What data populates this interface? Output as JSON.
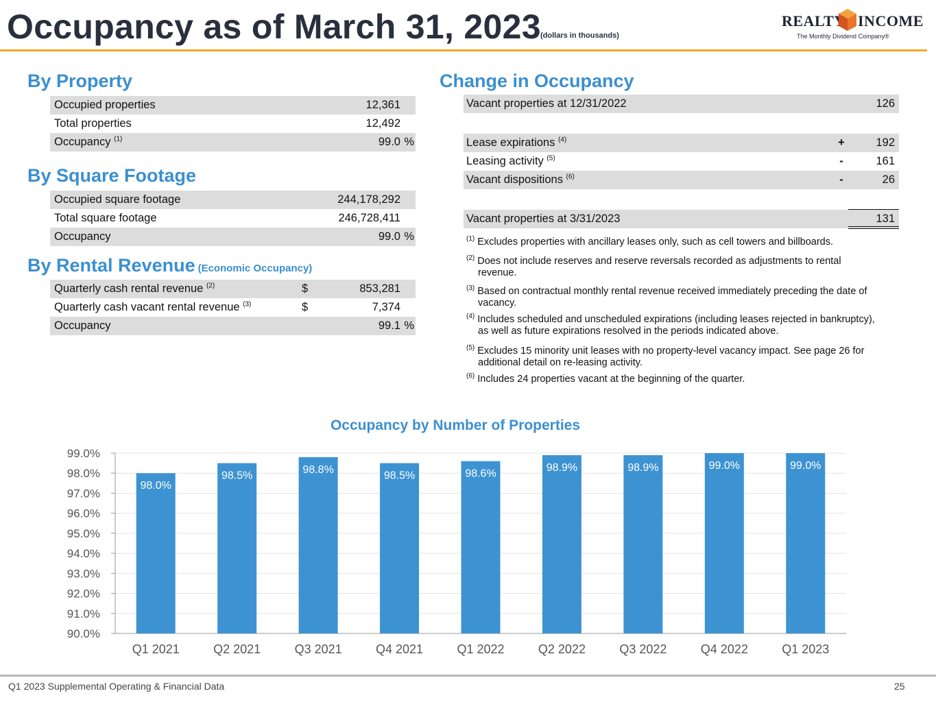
{
  "header": {
    "title": "Occupancy as of March 31, 2023",
    "note": "(dollars in thousands)",
    "logo_left": "REALTY",
    "logo_right": "INCOME",
    "logo_tagline": "The Monthly Dividend Company®",
    "accent_color": "#f5a623"
  },
  "by_property": {
    "title": "By Property",
    "rows": [
      {
        "label": "Occupied properties",
        "value": "12,361"
      },
      {
        "label": "Total properties",
        "value": "12,492"
      },
      {
        "label": "Occupancy",
        "sup": "(1)",
        "value": "99.0",
        "unit": "%"
      }
    ]
  },
  "by_square_footage": {
    "title": "By Square Footage",
    "rows": [
      {
        "label": "Occupied square footage",
        "value": "244,178,292"
      },
      {
        "label": "Total square footage",
        "value": "246,728,411"
      },
      {
        "label": "Occupancy",
        "value": "99.0",
        "unit": "%"
      }
    ]
  },
  "by_rental_revenue": {
    "title": "By Rental Revenue",
    "subtitle": "(Economic Occupancy)",
    "rows": [
      {
        "label": "Quarterly cash rental revenue",
        "sup": "(2)",
        "currency": "$",
        "value": "853,281"
      },
      {
        "label": "Quarterly cash vacant rental revenue",
        "sup": "(3)",
        "currency": "$",
        "value": "7,374"
      },
      {
        "label": "Occupancy",
        "value": "99.1",
        "unit": "%"
      }
    ]
  },
  "change_in_occupancy": {
    "title": "Change in Occupancy",
    "start": {
      "label": "Vacant properties at 12/31/2022",
      "value": "126"
    },
    "changes": [
      {
        "label": "Lease expirations",
        "sup": "(4)",
        "sign": "+",
        "value": "192"
      },
      {
        "label": "Leasing activity",
        "sup": "(5)",
        "sign": "-",
        "value": "161"
      },
      {
        "label": "Vacant dispositions",
        "sup": "(6)",
        "sign": "-",
        "value": "26"
      }
    ],
    "end": {
      "label": "Vacant properties at 3/31/2023",
      "value": "131"
    }
  },
  "footnotes": [
    {
      "mark": "(1)",
      "text": "Excludes properties with ancillary leases only, such as cell towers and billboards.",
      "cont": ""
    },
    {
      "mark": "(2)",
      "text": "Does not include reserves and reserve reversals recorded as adjustments to rental",
      "cont": "revenue."
    },
    {
      "mark": "(3)",
      "text": "Based on contractual monthly rental revenue received immediately preceding the date of",
      "cont": "vacancy."
    },
    {
      "mark": "(4)",
      "text": "Includes scheduled and unscheduled expirations (including leases rejected in bankruptcy),",
      "cont": "as well as future expirations resolved in the periods indicated above."
    },
    {
      "mark": "(5)",
      "text": "Excludes 15 minority unit leases with no property-level vacancy impact. See page 26 for",
      "cont": "additional detail on re-leasing activity."
    },
    {
      "mark": "(6)",
      "text": "Includes 24 properties vacant at the beginning of the quarter.",
      "cont": ""
    }
  ],
  "chart_data": {
    "type": "bar",
    "title": "Occupancy by Number of Properties",
    "categories": [
      "Q1 2021",
      "Q2 2021",
      "Q3 2021",
      "Q4 2021",
      "Q1 2022",
      "Q2 2022",
      "Q3 2022",
      "Q4 2022",
      "Q1 2023"
    ],
    "values": [
      98.0,
      98.5,
      98.8,
      98.5,
      98.6,
      98.9,
      98.9,
      99.0,
      99.0
    ],
    "labels": [
      "98.0%",
      "98.5%",
      "98.8%",
      "98.5%",
      "98.6%",
      "98.9%",
      "98.9%",
      "99.0%",
      "99.0%"
    ],
    "ylim": [
      90.0,
      99.0
    ],
    "yticks": [
      90.0,
      91.0,
      92.0,
      93.0,
      94.0,
      95.0,
      96.0,
      97.0,
      98.0,
      99.0
    ],
    "ytick_labels": [
      "90.0%",
      "91.0%",
      "92.0%",
      "93.0%",
      "94.0%",
      "95.0%",
      "96.0%",
      "97.0%",
      "98.0%",
      "99.0%"
    ],
    "xlabel": "",
    "ylabel": "",
    "grid": true,
    "bar_color": "#3d93d2"
  },
  "footer": {
    "left": "Q1 2023 Supplemental Operating & Financial Data",
    "page": "25"
  }
}
